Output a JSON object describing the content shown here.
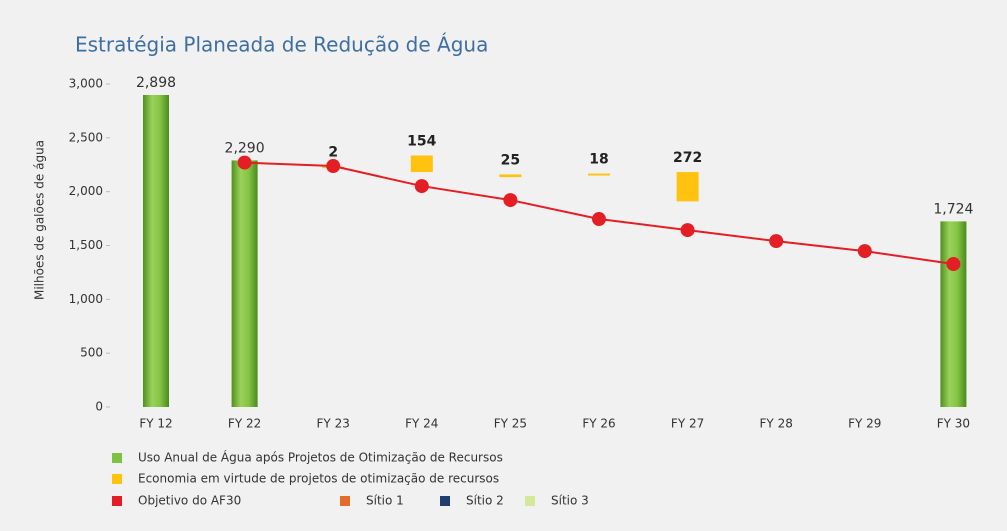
{
  "chart_data": {
    "type": "bar",
    "title": "Estratégia Planeada de Redução de Água",
    "y_label": "Milhões de galões de água",
    "categories": [
      "FY 12",
      "FY 22",
      "FY 23",
      "FY 24",
      "FY 25",
      "FY 26",
      "FY 27",
      "FY 28",
      "FY 29",
      "FY 30"
    ],
    "ylim": [
      0,
      3000
    ],
    "yticks": [
      0,
      500,
      {
        "value": 1000,
        "label": "1,000"
      },
      {
        "value": 1500,
        "label": "1,500"
      },
      {
        "value": 2000,
        "label": "2,000"
      },
      {
        "value": 2500,
        "label": "2,500"
      },
      {
        "value": 3000,
        "label": "3,000"
      }
    ],
    "grid": false,
    "series": [
      {
        "name": "Uso Anual de Água após Projetos de Otimização de Recursos",
        "type": "bar",
        "color": "#7dc242",
        "values": [
          2898,
          2290,
          null,
          null,
          null,
          null,
          null,
          null,
          null,
          1724
        ],
        "value_labels": [
          "2,898",
          "2,290",
          null,
          null,
          null,
          null,
          null,
          null,
          null,
          "1,724"
        ]
      },
      {
        "name": "Economia em virtude de projetos de otimização de recursos",
        "type": "floating_bar",
        "color": "#ffc20e",
        "values": [
          null,
          null,
          2,
          154,
          25,
          18,
          272,
          null,
          null,
          null
        ],
        "bottoms": [
          null,
          null,
          2230,
          2182,
          2135,
          2150,
          1910,
          null,
          null,
          null
        ]
      },
      {
        "name": "Objetivo do AF30",
        "type": "line",
        "color": "#e31e24",
        "values": [
          null,
          2270,
          2238,
          2052,
          1922,
          1746,
          1643,
          1541,
          1448,
          1328
        ]
      },
      {
        "name": "Sítio 1",
        "type": "legend",
        "color": "#e36c2b"
      },
      {
        "name": "Sítio 2",
        "type": "legend",
        "color": "#1f3f6e"
      },
      {
        "name": "Sítio 3",
        "type": "legend",
        "color": "#d4e89a"
      }
    ]
  }
}
